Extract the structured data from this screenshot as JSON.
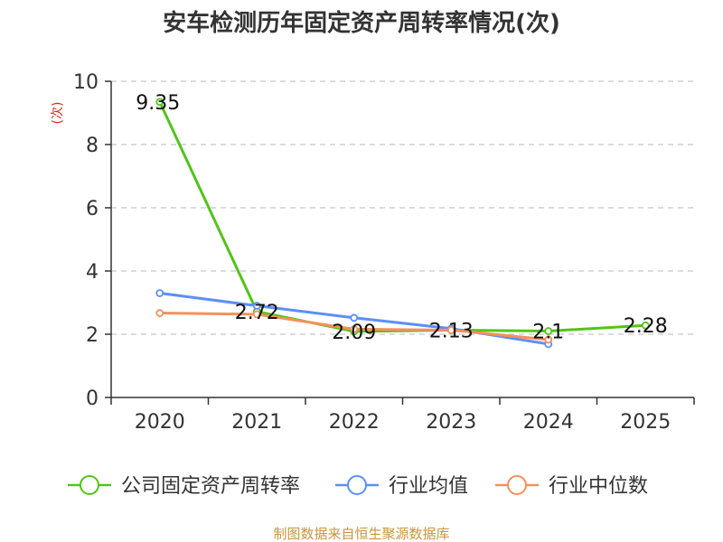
{
  "chart_data": {
    "type": "line",
    "title": "安车检测历年固定资产周转率情况(次)",
    "ylabel": "(次)",
    "xlabel": "",
    "categories": [
      "2020",
      "2021",
      "2022",
      "2023",
      "2024",
      "2025"
    ],
    "ylim": [
      0,
      10
    ],
    "yticks": [
      0,
      2,
      4,
      6,
      8,
      10
    ],
    "grid": true,
    "legend_position": "bottom",
    "series": [
      {
        "name": "公司固定资产周转率",
        "color": "#52c41a",
        "values": [
          9.35,
          2.72,
          2.09,
          2.13,
          2.1,
          2.28
        ],
        "labels": [
          "9.35",
          "2.72",
          "2.09",
          "2.13",
          "2.1",
          "2.28"
        ]
      },
      {
        "name": "行业均值",
        "color": "#5b8ff9",
        "values": [
          3.3,
          2.9,
          2.52,
          2.18,
          1.69,
          null
        ]
      },
      {
        "name": "行业中位数",
        "color": "#f6905a",
        "values": [
          2.67,
          2.63,
          2.16,
          2.13,
          1.83,
          null
        ]
      }
    ],
    "source": "制图数据来自恒生聚源数据库"
  }
}
